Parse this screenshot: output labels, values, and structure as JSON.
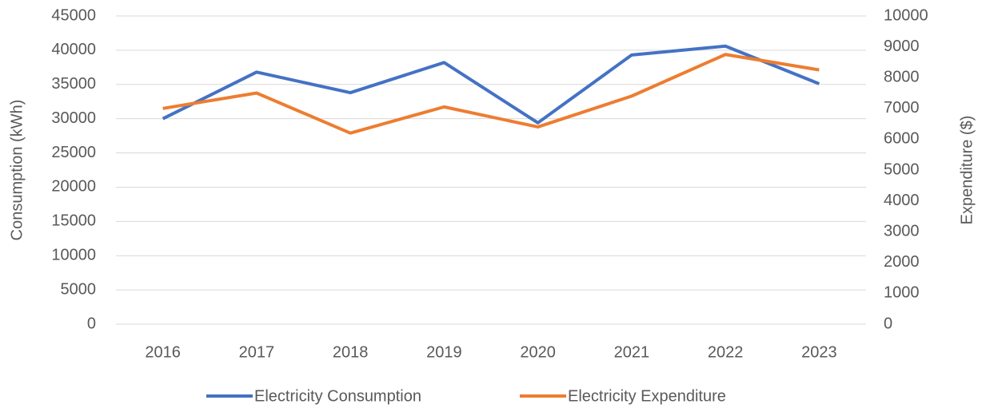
{
  "chart_data": {
    "type": "line",
    "categories": [
      "2016",
      "2017",
      "2018",
      "2019",
      "2020",
      "2021",
      "2022",
      "2023"
    ],
    "series": [
      {
        "name": "Electricity Consumption",
        "color": "#4472c4",
        "values": [
          30000,
          36800,
          33800,
          38200,
          29400,
          39300,
          40600,
          35100
        ]
      },
      {
        "name": "Electricity Expenditure",
        "color": "#ed7d31",
        "axis": "y2",
        "values": [
          7000,
          7500,
          6200,
          7050,
          6400,
          7400,
          8750,
          8250
        ]
      }
    ],
    "ylabel": "Consumption (kWh)",
    "y2label": "Expenditure ($)",
    "ylim": [
      0,
      45000
    ],
    "yticks": [
      0,
      5000,
      10000,
      15000,
      20000,
      25000,
      30000,
      35000,
      40000,
      45000
    ],
    "y2lim": [
      0,
      10000
    ],
    "y2ticks": [
      0,
      1000,
      2000,
      3000,
      4000,
      5000,
      6000,
      7000,
      8000,
      9000,
      10000
    ],
    "grid": true,
    "legend": "bottom"
  }
}
